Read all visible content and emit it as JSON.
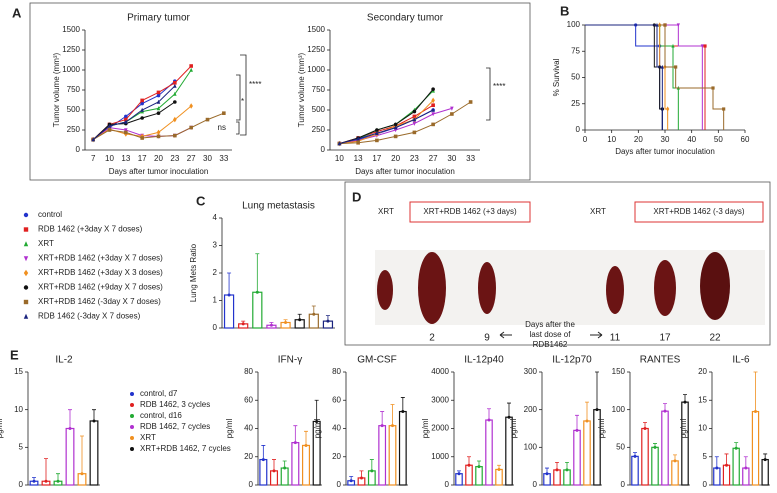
{
  "panel_labels": [
    "A",
    "B",
    "C",
    "D",
    "E"
  ],
  "chart_data": [
    {
      "type": "line",
      "title": "Primary tumor",
      "xlabel": "Days after tumor inoculation",
      "ylabel": "Tumor volume (mm³)",
      "categories": [
        "7",
        "10",
        "13",
        "17",
        "20",
        "23",
        "27",
        "30",
        "33"
      ],
      "ylim": [
        0,
        1500
      ],
      "yticks": [
        0,
        250,
        500,
        750,
        1000,
        1250,
        1500
      ],
      "annotations": [
        "****",
        "*",
        "ns"
      ],
      "series": [
        {
          "name": "control",
          "color": "#2233cc",
          "values": [
            130,
            280,
            420,
            580,
            680,
            860,
            null,
            null,
            null
          ]
        },
        {
          "name": "RDB 1462 (+3day X 7 doses)",
          "color": "#e02020",
          "values": [
            130,
            320,
            380,
            620,
            720,
            840,
            1050,
            null,
            null
          ]
        },
        {
          "name": "XRT",
          "color": "#22aa33",
          "values": [
            130,
            300,
            350,
            480,
            520,
            700,
            1000,
            null,
            null
          ]
        },
        {
          "name": "XRT+RDB 1462 (+3day X 7 doses)",
          "color": "#b030d0",
          "values": [
            130,
            280,
            250,
            180,
            170,
            180,
            280,
            null,
            null
          ]
        },
        {
          "name": "XRT+RDB 1462 (+3day X 3 doses)",
          "color": "#f09020",
          "values": [
            130,
            260,
            200,
            170,
            220,
            380,
            550,
            null,
            null
          ]
        },
        {
          "name": "XRT+RDB 1462 (+9day X 7 doses)",
          "color": "#111111",
          "values": [
            130,
            320,
            330,
            400,
            460,
            600,
            null,
            null,
            null
          ]
        },
        {
          "name": "XRT+RDB 1462 (-3day X 7 doses)",
          "color": "#9a6a2a",
          "values": [
            130,
            250,
            220,
            150,
            170,
            180,
            280,
            380,
            460
          ]
        },
        {
          "name": "RDB 1462 (-3day X 7 doses)",
          "color": "#1a237e",
          "values": [
            130,
            300,
            350,
            500,
            600,
            800,
            null,
            null,
            null
          ]
        }
      ]
    },
    {
      "type": "line",
      "title": "Secondary tumor",
      "xlabel": "Days after tumor inoculation",
      "ylabel": "Tumor volume (mm³)",
      "categories": [
        "10",
        "13",
        "17",
        "20",
        "23",
        "27",
        "30",
        "33"
      ],
      "ylim": [
        0,
        1500
      ],
      "yticks": [
        0,
        250,
        500,
        750,
        1000,
        1250,
        1500
      ],
      "annotations": [
        "****"
      ],
      "series": [
        {
          "color": "#2233cc",
          "values": [
            80,
            130,
            200,
            280,
            380,
            500,
            null,
            null
          ]
        },
        {
          "color": "#e02020",
          "values": [
            80,
            150,
            230,
            300,
            420,
            560,
            null,
            null
          ]
        },
        {
          "color": "#22aa33",
          "values": [
            80,
            140,
            250,
            320,
            500,
            740,
            null,
            null
          ]
        },
        {
          "color": "#b030d0",
          "values": [
            80,
            120,
            180,
            250,
            330,
            450,
            520,
            null
          ]
        },
        {
          "color": "#f09020",
          "values": [
            80,
            110,
            200,
            300,
            380,
            620,
            null,
            null
          ]
        },
        {
          "color": "#111111",
          "values": [
            80,
            150,
            250,
            320,
            480,
            760,
            null,
            null
          ]
        },
        {
          "color": "#9a6a2a",
          "values": [
            80,
            90,
            120,
            170,
            220,
            320,
            450,
            600
          ]
        },
        {
          "color": "#1a237e",
          "values": [
            80,
            140,
            210,
            280,
            380,
            500,
            null,
            null
          ]
        }
      ]
    },
    {
      "type": "survival",
      "xlabel": "Days after tumor inoculation",
      "ylabel": "% Survival",
      "xlim": [
        0,
        60
      ],
      "xticks": [
        0,
        10,
        20,
        30,
        40,
        50,
        60
      ],
      "ylim": [
        0,
        100
      ],
      "yticks": [
        0,
        25,
        50,
        75,
        100
      ],
      "series": [
        {
          "color": "#2233cc",
          "x": [
            0,
            19,
            28,
            29
          ],
          "values": [
            100,
            80,
            20,
            0
          ]
        },
        {
          "color": "#e02020",
          "x": [
            0,
            30,
            45
          ],
          "values": [
            100,
            80,
            0
          ]
        },
        {
          "color": "#22aa33",
          "x": [
            0,
            28,
            33,
            35
          ],
          "values": [
            100,
            80,
            40,
            0
          ]
        },
        {
          "color": "#b030d0",
          "x": [
            0,
            35,
            44
          ],
          "values": [
            100,
            80,
            0
          ]
        },
        {
          "color": "#f09020",
          "x": [
            0,
            28,
            30,
            31
          ],
          "values": [
            100,
            60,
            20,
            0
          ]
        },
        {
          "color": "#111111",
          "x": [
            0,
            26,
            28,
            29
          ],
          "values": [
            100,
            60,
            20,
            0
          ]
        },
        {
          "color": "#9a6a2a",
          "x": [
            0,
            30,
            34,
            48,
            52
          ],
          "values": [
            100,
            60,
            40,
            20,
            0
          ]
        },
        {
          "color": "#1a237e",
          "x": [
            0,
            27,
            29
          ],
          "values": [
            100,
            60,
            0
          ]
        }
      ]
    },
    {
      "type": "bar",
      "title": "Lung metastasis",
      "ylabel": "Lung Mets Ratio",
      "categories": [
        null,
        null,
        null,
        null,
        null,
        null,
        null,
        null
      ],
      "values": [
        1.2,
        0.15,
        1.3,
        0.1,
        0.2,
        0.3,
        0.5,
        0.25
      ],
      "errors": [
        0.8,
        0.1,
        1.4,
        0.1,
        0.1,
        0.2,
        0.3,
        0.2
      ],
      "colors": [
        "#2233cc",
        "#e02020",
        "#22aa33",
        "#b030d0",
        "#f09020",
        "#111111",
        "#9a6a2a",
        "#1a237e"
      ],
      "ylim": [
        0,
        4
      ],
      "yticks": [
        0,
        1,
        2,
        3,
        4
      ]
    },
    {
      "type": "bar",
      "title": "IL-2",
      "ylabel": "pg/ml",
      "categories": [
        null,
        null,
        null,
        null,
        null,
        null
      ],
      "values": [
        0.5,
        0.5,
        0.5,
        7.5,
        1.5,
        8.5
      ],
      "errors": [
        0.5,
        3,
        1,
        2.5,
        5,
        1.5
      ],
      "colors": [
        "#2233cc",
        "#e02020",
        "#22aa33",
        "#b030d0",
        "#f09020",
        "#111111"
      ],
      "legend": [
        "control, d7",
        "RDB 1462, 3 cycles",
        "control, d16",
        "RDB 1462, 7 cycles",
        "XRT",
        "XRT+RDB 1462, 7 cycles"
      ],
      "ylim": [
        0,
        15
      ],
      "yticks": [
        0,
        5,
        10,
        15
      ]
    },
    {
      "type": "bar",
      "title": "IFN-γ",
      "ylabel": "pg/ml",
      "categories": [
        null,
        null,
        null,
        null,
        null,
        null
      ],
      "values": [
        18,
        10,
        12,
        30,
        28,
        45
      ],
      "errors": [
        10,
        8,
        5,
        12,
        10,
        15
      ],
      "colors": [
        "#2233cc",
        "#e02020",
        "#22aa33",
        "#b030d0",
        "#f09020",
        "#111111"
      ],
      "ylim": [
        0,
        80
      ],
      "yticks": [
        0,
        20,
        40,
        60,
        80
      ]
    },
    {
      "type": "bar",
      "title": "GM-CSF",
      "ylabel": "pg/ml",
      "categories": [
        null,
        null,
        null,
        null,
        null,
        null
      ],
      "values": [
        3,
        5,
        10,
        42,
        42,
        52
      ],
      "errors": [
        3,
        5,
        8,
        10,
        15,
        10
      ],
      "colors": [
        "#2233cc",
        "#e02020",
        "#22aa33",
        "#b030d0",
        "#f09020",
        "#111111"
      ],
      "ylim": [
        0,
        80
      ],
      "yticks": [
        0,
        20,
        40,
        60,
        80
      ]
    },
    {
      "type": "bar",
      "title": "IL-12p40",
      "ylabel": "pg/ml",
      "categories": [
        null,
        null,
        null,
        null,
        null,
        null
      ],
      "values": [
        400,
        700,
        650,
        2300,
        550,
        2400
      ],
      "errors": [
        100,
        300,
        200,
        400,
        150,
        500
      ],
      "colors": [
        "#2233cc",
        "#e02020",
        "#22aa33",
        "#b030d0",
        "#f09020",
        "#111111"
      ],
      "ylim": [
        0,
        4000
      ],
      "yticks": [
        0,
        1000,
        2000,
        3000,
        4000
      ]
    },
    {
      "type": "bar",
      "title": "IL-12p70",
      "ylabel": "pg/ml",
      "categories": [
        null,
        null,
        null,
        null,
        null,
        null
      ],
      "values": [
        30,
        40,
        40,
        145,
        170,
        200
      ],
      "errors": [
        15,
        20,
        20,
        40,
        50,
        100
      ],
      "colors": [
        "#2233cc",
        "#e02020",
        "#22aa33",
        "#b030d0",
        "#f09020",
        "#111111"
      ],
      "ylim": [
        0,
        300
      ],
      "yticks": [
        0,
        100,
        200,
        300
      ]
    },
    {
      "type": "bar",
      "title": "RANTES",
      "ylabel": "pg/ml",
      "categories": [
        null,
        null,
        null,
        null,
        null,
        null
      ],
      "values": [
        38,
        75,
        50,
        98,
        32,
        110
      ],
      "errors": [
        5,
        8,
        5,
        10,
        8,
        10
      ],
      "colors": [
        "#2233cc",
        "#e02020",
        "#22aa33",
        "#b030d0",
        "#f09020",
        "#111111"
      ],
      "ylim": [
        0,
        150
      ],
      "yticks": [
        0,
        50,
        100,
        150
      ]
    },
    {
      "type": "bar",
      "title": "IL-6",
      "ylabel": "pg/ml",
      "categories": [
        null,
        null,
        null,
        null,
        null,
        null
      ],
      "values": [
        3,
        3.5,
        6.5,
        3,
        13,
        4.5
      ],
      "errors": [
        2,
        2,
        1,
        2,
        7,
        1
      ],
      "colors": [
        "#2233cc",
        "#e02020",
        "#22aa33",
        "#b030d0",
        "#f09020",
        "#111111"
      ],
      "ylim": [
        0,
        20
      ],
      "yticks": [
        0,
        5,
        10,
        15,
        20
      ]
    }
  ],
  "photo": {
    "left_label": "XRT",
    "left_box": "XRT+RDB 1462  (+3 days)",
    "right_label": "XRT",
    "right_box": "XRT+RDB 1462  (-3 days)",
    "days": [
      "2",
      "9",
      "11",
      "17",
      "22"
    ],
    "caption": [
      "Days  after the",
      "last dose of",
      "RDB1462"
    ]
  }
}
